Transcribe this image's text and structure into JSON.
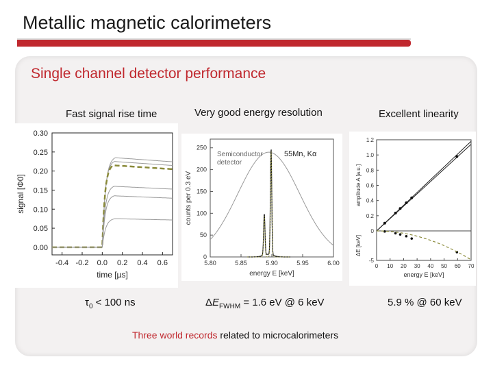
{
  "slide": {
    "title": "Metallic magnetic calorimeters",
    "subtitle": "Single channel detector performance",
    "footer_prefix": "Three world records",
    "footer_suffix": " related to microcalorimeters"
  },
  "columns": {
    "rise_time": {
      "heading": "Fast signal rise time",
      "result": "τ0 < 100 ns"
    },
    "resolution": {
      "heading": "Very good energy resolution",
      "result": "ΔEFWHM = 1.6 eV @ 6 keV"
    },
    "linearity": {
      "heading": "Excellent linearity",
      "result": "5.9 % @ 60 keV"
    }
  },
  "colors": {
    "accent": "#c0282e",
    "panel": "#f3f1f1",
    "fit": "#8a8a3a"
  },
  "chart_data": [
    {
      "type": "line",
      "xlabel": "time [µs]",
      "ylabel": "signal [Φ0]",
      "xlim": [
        -0.5,
        0.7
      ],
      "ylim": [
        -0.02,
        0.3
      ],
      "xticks": [
        "-0.4",
        "-0.2",
        "0.0",
        "0.2",
        "0.4",
        "0.6"
      ],
      "yticks": [
        "0.00",
        "0.05",
        "0.10",
        "0.15",
        "0.20",
        "0.25",
        "0.30"
      ],
      "series": [
        {
          "plateau": 0.235,
          "rise": 0.13
        },
        {
          "plateau": 0.225,
          "rise": 0.12
        },
        {
          "plateau": 0.215,
          "rise": 0.11,
          "dashed": true
        },
        {
          "plateau": 0.16,
          "rise": 0.12
        },
        {
          "plateau": 0.135,
          "rise": 0.12
        },
        {
          "plateau": 0.075,
          "rise": 0.13
        }
      ]
    },
    {
      "type": "line",
      "xlabel": "energy E [keV]",
      "ylabel": "counts per 0.3 eV",
      "xlim": [
        5.8,
        6.0
      ],
      "ylim": [
        0,
        270
      ],
      "xticks": [
        "5.80",
        "5.85",
        "5.90",
        "5.95",
        "6.00"
      ],
      "yticks": [
        "0",
        "50",
        "100",
        "150",
        "200",
        "250"
      ],
      "annotations": [
        "Semiconductor detector",
        "55Mn, Kα"
      ],
      "peaks": [
        {
          "center": 5.8878,
          "height": 95
        },
        {
          "center": 5.8988,
          "height": 245
        }
      ],
      "semiconductor": {
        "center": 5.895,
        "height": 240,
        "sigma": 0.05
      }
    },
    {
      "type": "scatter",
      "xlabel": "energy E [keV]",
      "ylabel_top": "amplitude A [a.u.]",
      "ylabel_bottom": "ΔE [keV]",
      "xlim": [
        0,
        70
      ],
      "ylim_top": [
        0,
        1.2
      ],
      "ylim_bottom": [
        -5,
        0
      ],
      "xticks": [
        "0",
        "10",
        "20",
        "30",
        "40",
        "50",
        "60",
        "70"
      ],
      "yticks_top": [
        "0",
        "0.2",
        "0.4",
        "0.6",
        "0.8",
        "1.0",
        "1.2"
      ],
      "yticks_bottom": [
        "0",
        "-5"
      ],
      "points": [
        {
          "x": 6,
          "a": 0.102,
          "d": -0.1
        },
        {
          "x": 14,
          "a": 0.235,
          "d": -0.4
        },
        {
          "x": 17.5,
          "a": 0.295,
          "d": -0.6
        },
        {
          "x": 22,
          "a": 0.37,
          "d": -0.9
        },
        {
          "x": 26,
          "a": 0.435,
          "d": -1.3
        },
        {
          "x": 59.5,
          "a": 0.98,
          "d": -3.6
        }
      ]
    }
  ]
}
